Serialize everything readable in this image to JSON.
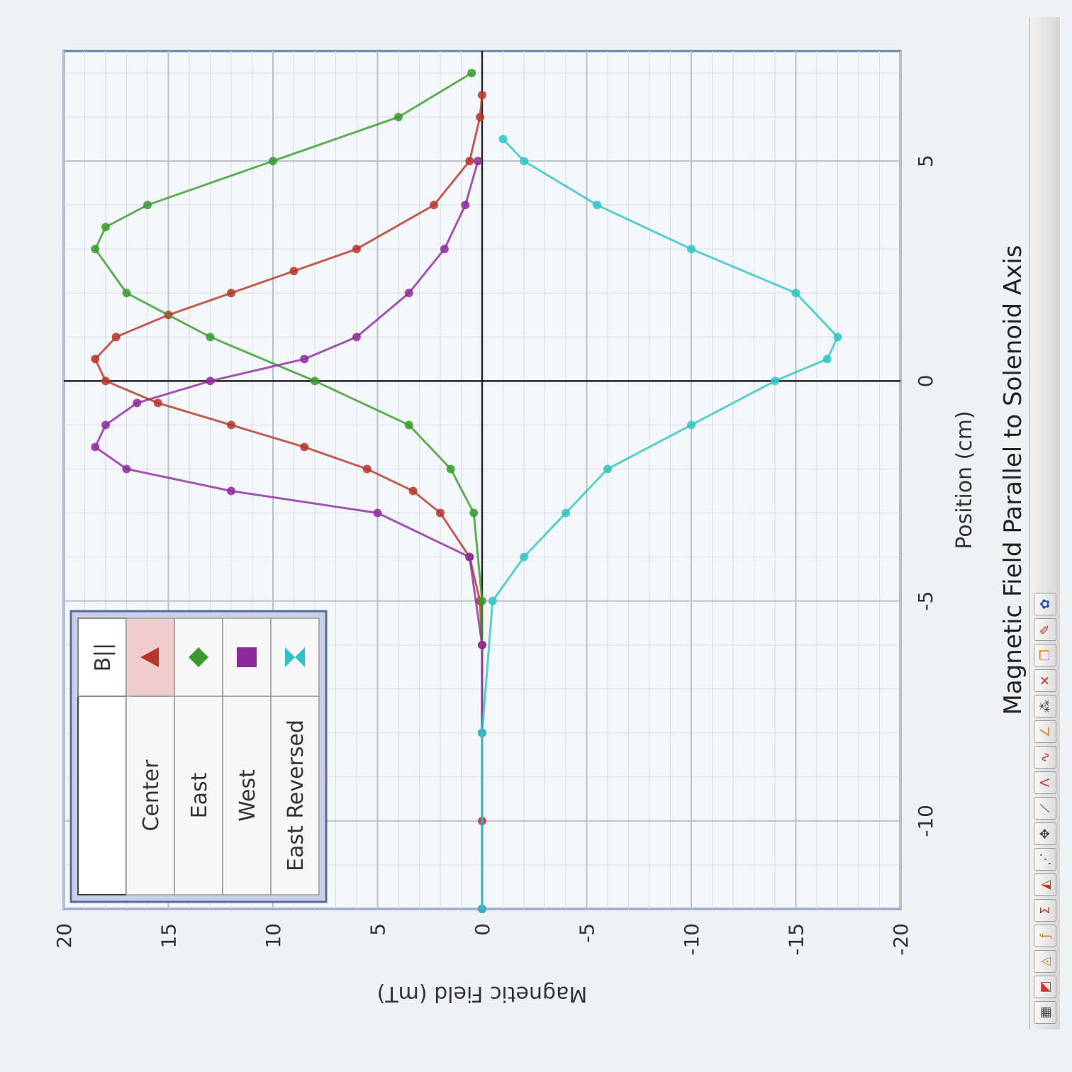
{
  "toolbar": {
    "icons": [
      "table-icon",
      "graph-icon",
      "chart-options-icon",
      "curve-fit-icon",
      "sigma-icon",
      "scale-icon",
      "data-points-icon",
      "crosshair-icon",
      "tangent-icon",
      "peak-icon",
      "smooth-icon",
      "integral-icon",
      "annotation-icon",
      "delete-icon",
      "copy-icon",
      "pin-icon",
      "settings-icon"
    ]
  },
  "legend": {
    "header_left": "",
    "header_right": "B||",
    "entries": [
      {
        "label": "Center",
        "marker": "triangle",
        "color": "#b5352a"
      },
      {
        "label": "East",
        "marker": "diamond",
        "color": "#3a9a2f"
      },
      {
        "label": "West",
        "marker": "square",
        "color": "#8e2a9e"
      },
      {
        "label": "East Reversed",
        "marker": "bowtie",
        "color": "#2fc4c4"
      }
    ]
  },
  "chart_data": {
    "type": "line",
    "title": "Magnetic Field Parallel to Solenoid Axis",
    "xlabel": "Position (cm)",
    "ylabel": "Magnetic Field (mT)",
    "xlim": [
      -12,
      7.5
    ],
    "ylim": [
      -20,
      20
    ],
    "xticks": [
      "-10",
      "-5",
      "0",
      "5"
    ],
    "yticks": [
      "20",
      "15",
      "10",
      "5",
      "0",
      "-5",
      "-10",
      "-15",
      "-20"
    ],
    "grid": true,
    "legend_position": "top-left",
    "series": [
      {
        "name": "Center",
        "color": "#b5352a",
        "x": [
          -12,
          -10,
          -8,
          -6,
          -5,
          -4,
          -3,
          -2.5,
          -2,
          -1.5,
          -1,
          -0.5,
          0,
          0.5,
          1,
          1.5,
          2,
          2.5,
          3,
          4,
          5,
          6,
          6.5
        ],
        "y": [
          0,
          0,
          0,
          0,
          0.1,
          0.6,
          2.0,
          3.3,
          5.5,
          8.5,
          12,
          15.5,
          18,
          18.5,
          17.5,
          15,
          12,
          9,
          6,
          2.3,
          0.6,
          0.1,
          0
        ]
      },
      {
        "name": "East",
        "color": "#3a9a2f",
        "x": [
          -12,
          -8,
          -5,
          -3,
          -2,
          -1,
          0,
          1,
          2,
          3,
          3.5,
          4,
          5,
          6,
          7
        ],
        "y": [
          0,
          0,
          0,
          0.4,
          1.5,
          3.5,
          8,
          13,
          17,
          18.5,
          18,
          16,
          10,
          4,
          0.5
        ]
      },
      {
        "name": "West",
        "color": "#8e2a9e",
        "x": [
          -12,
          -8,
          -6,
          -4,
          -3,
          -2.5,
          -2,
          -1.5,
          -1,
          -0.5,
          0,
          0.5,
          1,
          2,
          3,
          4,
          5
        ],
        "y": [
          0,
          0,
          0,
          0.6,
          5,
          12,
          17,
          18.5,
          18,
          16.5,
          13,
          8.5,
          6,
          3.5,
          1.8,
          0.8,
          0.2
        ]
      },
      {
        "name": "East Reversed",
        "color": "#2fc4c4",
        "x": [
          -12,
          -8,
          -5,
          -4,
          -3,
          -2,
          -1,
          0,
          0.5,
          1,
          2,
          3,
          4,
          5,
          5.5
        ],
        "y": [
          0,
          0,
          -0.5,
          -2,
          -4,
          -6,
          -10,
          -14,
          -16.5,
          -17,
          -15,
          -10,
          -5.5,
          -2,
          -1
        ]
      }
    ]
  }
}
